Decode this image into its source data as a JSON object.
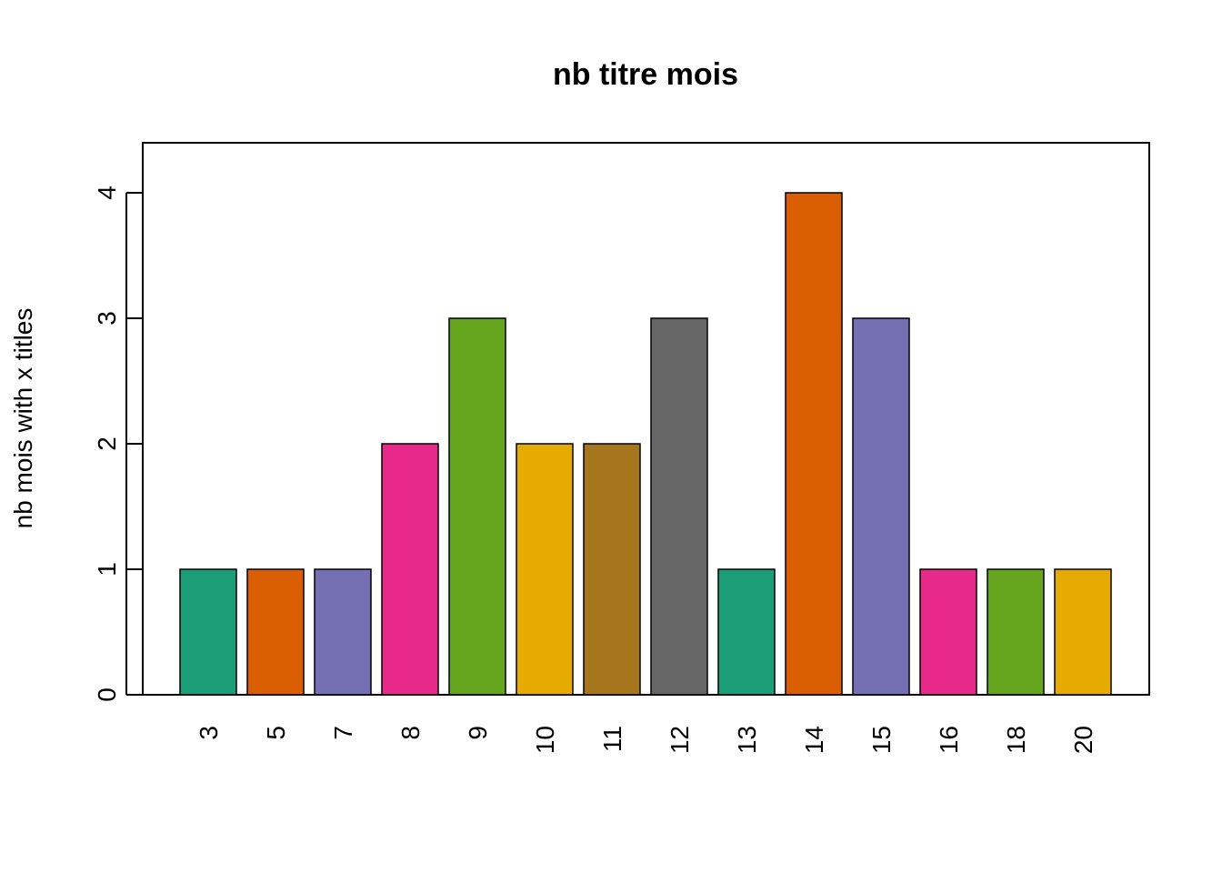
{
  "chart_data": {
    "type": "bar",
    "title": "nb titre mois",
    "xlabel": "",
    "ylabel": "nb mois with x titles",
    "categories": [
      "3",
      "5",
      "7",
      "8",
      "9",
      "10",
      "11",
      "12",
      "13",
      "14",
      "15",
      "16",
      "18",
      "20"
    ],
    "values": [
      1,
      1,
      1,
      2,
      3,
      2,
      2,
      3,
      1,
      4,
      3,
      1,
      1,
      1
    ],
    "colors": [
      "#1B9E77",
      "#D95F02",
      "#7570B3",
      "#E7298A",
      "#66A61E",
      "#E6AB02",
      "#A6761D",
      "#666666",
      "#1B9E77",
      "#D95F02",
      "#7570B3",
      "#E7298A",
      "#66A61E",
      "#E6AB02"
    ],
    "y_ticks": [
      "0",
      "1",
      "2",
      "3",
      "4"
    ],
    "ylim": [
      0,
      4.4
    ],
    "grid": false,
    "legend": "none",
    "x_tick_orientation": "vertical"
  }
}
